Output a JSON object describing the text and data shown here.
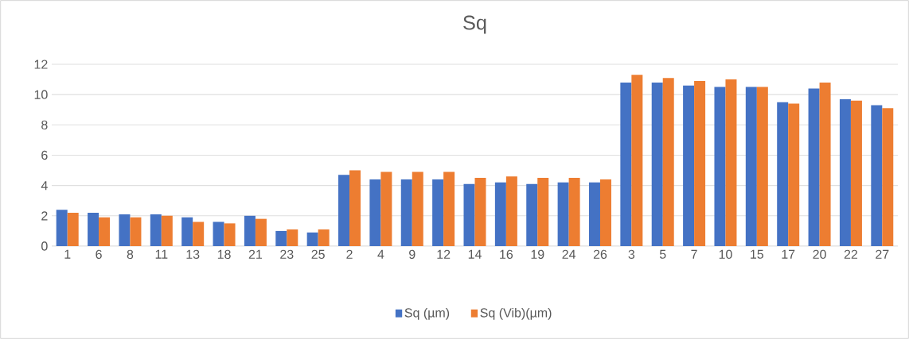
{
  "chart_data": {
    "type": "bar",
    "title": "Sq",
    "categories": [
      "1",
      "6",
      "8",
      "11",
      "13",
      "18",
      "21",
      "23",
      "25",
      "2",
      "4",
      "9",
      "12",
      "14",
      "16",
      "19",
      "24",
      "26",
      "3",
      "5",
      "7",
      "10",
      "15",
      "17",
      "20",
      "22",
      "27"
    ],
    "series": [
      {
        "name": "Sq (µm)",
        "color": "#4472c4",
        "values": [
          2.4,
          2.2,
          2.1,
          2.1,
          1.9,
          1.6,
          2.0,
          1.0,
          0.9,
          4.7,
          4.4,
          4.4,
          4.4,
          4.1,
          4.2,
          4.1,
          4.2,
          4.2,
          10.8,
          10.8,
          10.6,
          10.5,
          10.5,
          9.5,
          10.4,
          9.7,
          9.3
        ]
      },
      {
        "name": "Sq (Vib)(µm)",
        "color": "#ed7d31",
        "values": [
          2.2,
          1.9,
          1.9,
          2.0,
          1.6,
          1.5,
          1.8,
          1.1,
          1.1,
          5.0,
          4.9,
          4.9,
          4.9,
          4.5,
          4.6,
          4.5,
          4.5,
          4.4,
          11.3,
          11.1,
          10.9,
          11.0,
          10.5,
          9.4,
          10.8,
          9.6,
          9.1
        ]
      }
    ],
    "ylim": [
      0,
      12
    ],
    "yticks": [
      0,
      2,
      4,
      6,
      8,
      10,
      12
    ],
    "grid": "y",
    "legend": "bottom"
  }
}
